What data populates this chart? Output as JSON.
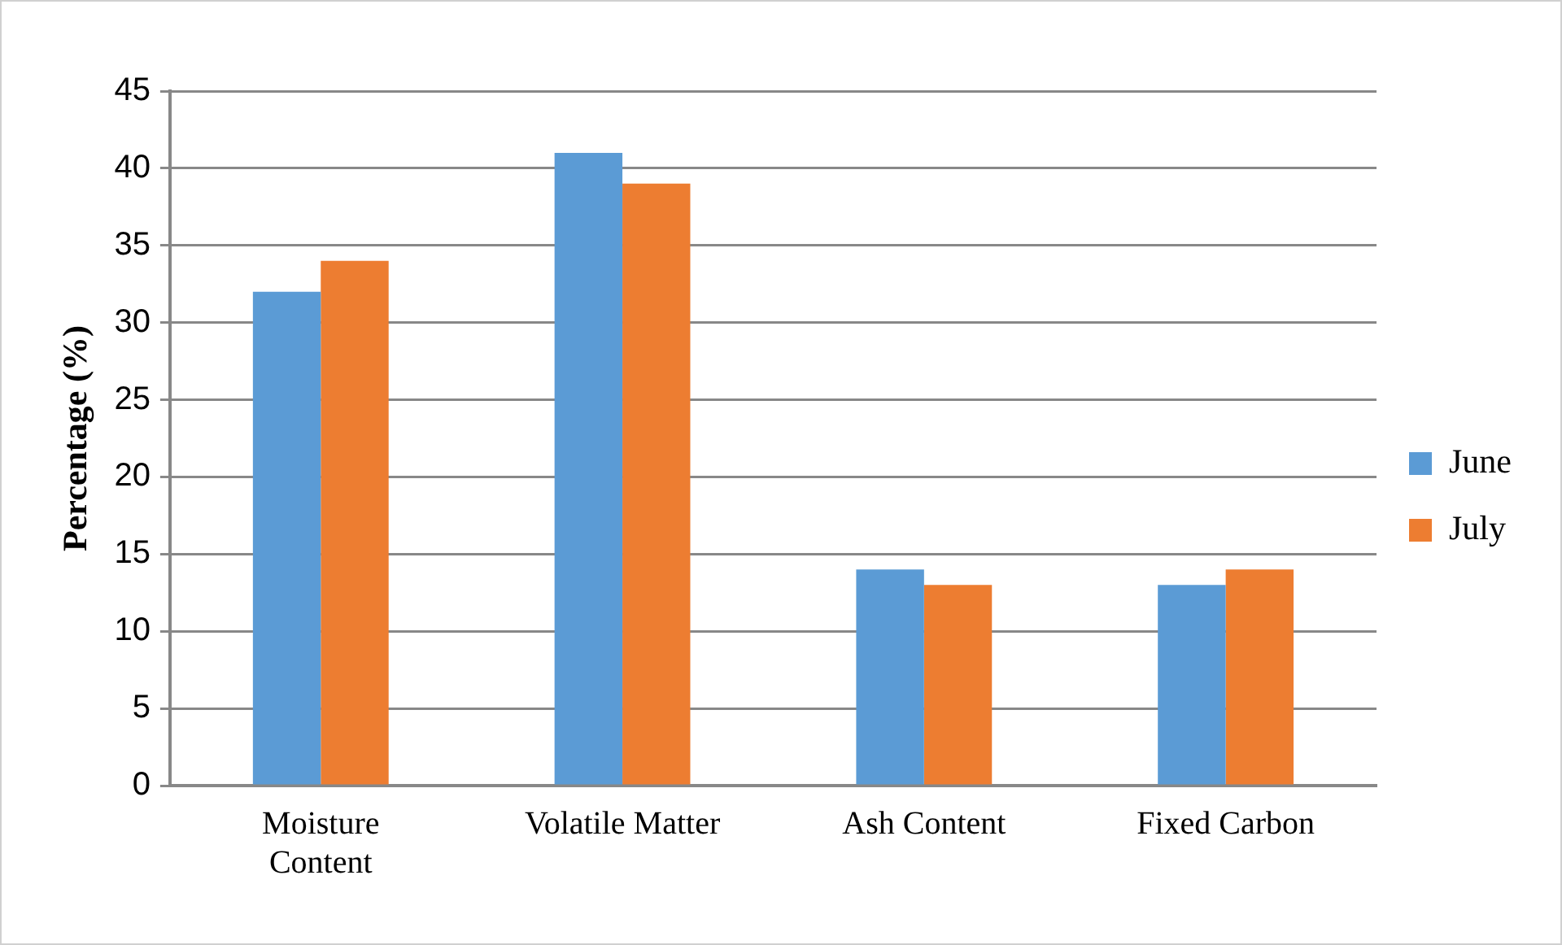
{
  "chart_data": {
    "type": "bar",
    "ylabel": "Percentage (%)",
    "categories": [
      "Moisture Content",
      "Volatile Matter",
      "Ash Content",
      "Fixed Carbon"
    ],
    "series": [
      {
        "name": "June",
        "color": "#5b9bd5",
        "values": [
          32,
          41,
          14,
          13
        ]
      },
      {
        "name": "July",
        "color": "#ed7d31",
        "values": [
          34,
          39,
          13,
          14
        ]
      }
    ],
    "ylim": [
      0,
      45
    ],
    "yticks": [
      0,
      5,
      10,
      15,
      20,
      25,
      30,
      35,
      40,
      45
    ],
    "grid": "y",
    "legend": "right"
  }
}
